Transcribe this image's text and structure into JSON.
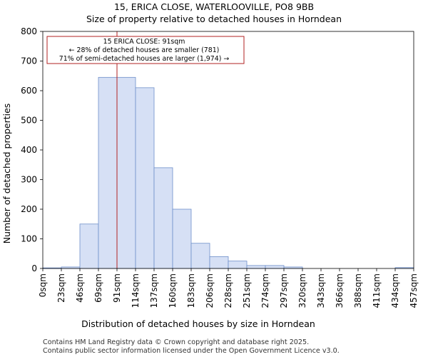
{
  "chart_data": {
    "type": "bar",
    "title": "15, ERICA CLOSE, WATERLOOVILLE, PO8 9BB",
    "subtitle": "Size of property relative to detached houses in Horndean",
    "xlabel": "Distribution of detached houses by size in Horndean",
    "ylabel": "Number of detached properties",
    "ylim": [
      0,
      800
    ],
    "yticks": [
      0,
      100,
      200,
      300,
      400,
      500,
      600,
      700,
      800
    ],
    "bin_edges": [
      0,
      23,
      46,
      69,
      91,
      114,
      137,
      160,
      183,
      206,
      228,
      251,
      274,
      297,
      320,
      343,
      366,
      388,
      411,
      434,
      457
    ],
    "xtick_labels": [
      "0sqm",
      "23sqm",
      "46sqm",
      "69sqm",
      "91sqm",
      "114sqm",
      "137sqm",
      "160sqm",
      "183sqm",
      "206sqm",
      "228sqm",
      "251sqm",
      "274sqm",
      "297sqm",
      "320sqm",
      "343sqm",
      "366sqm",
      "388sqm",
      "411sqm",
      "434sqm",
      "457sqm"
    ],
    "values": [
      2,
      5,
      150,
      645,
      645,
      610,
      340,
      200,
      85,
      40,
      25,
      10,
      10,
      5,
      0,
      0,
      0,
      0,
      0,
      3
    ],
    "bar_color": "#d6e0f5",
    "bar_edge_color": "#6f8fca",
    "marker": {
      "value": 91,
      "color": "#b22222",
      "label_lines": [
        "15 ERICA CLOSE: 91sqm",
        "← 28% of detached houses are smaller (781)",
        "71% of semi-detached houses are larger (1,974) →"
      ]
    },
    "grid": false
  },
  "footer": {
    "line1": "Contains HM Land Registry data © Crown copyright and database right 2025.",
    "line2": "Contains public sector information licensed under the Open Government Licence v3.0."
  }
}
